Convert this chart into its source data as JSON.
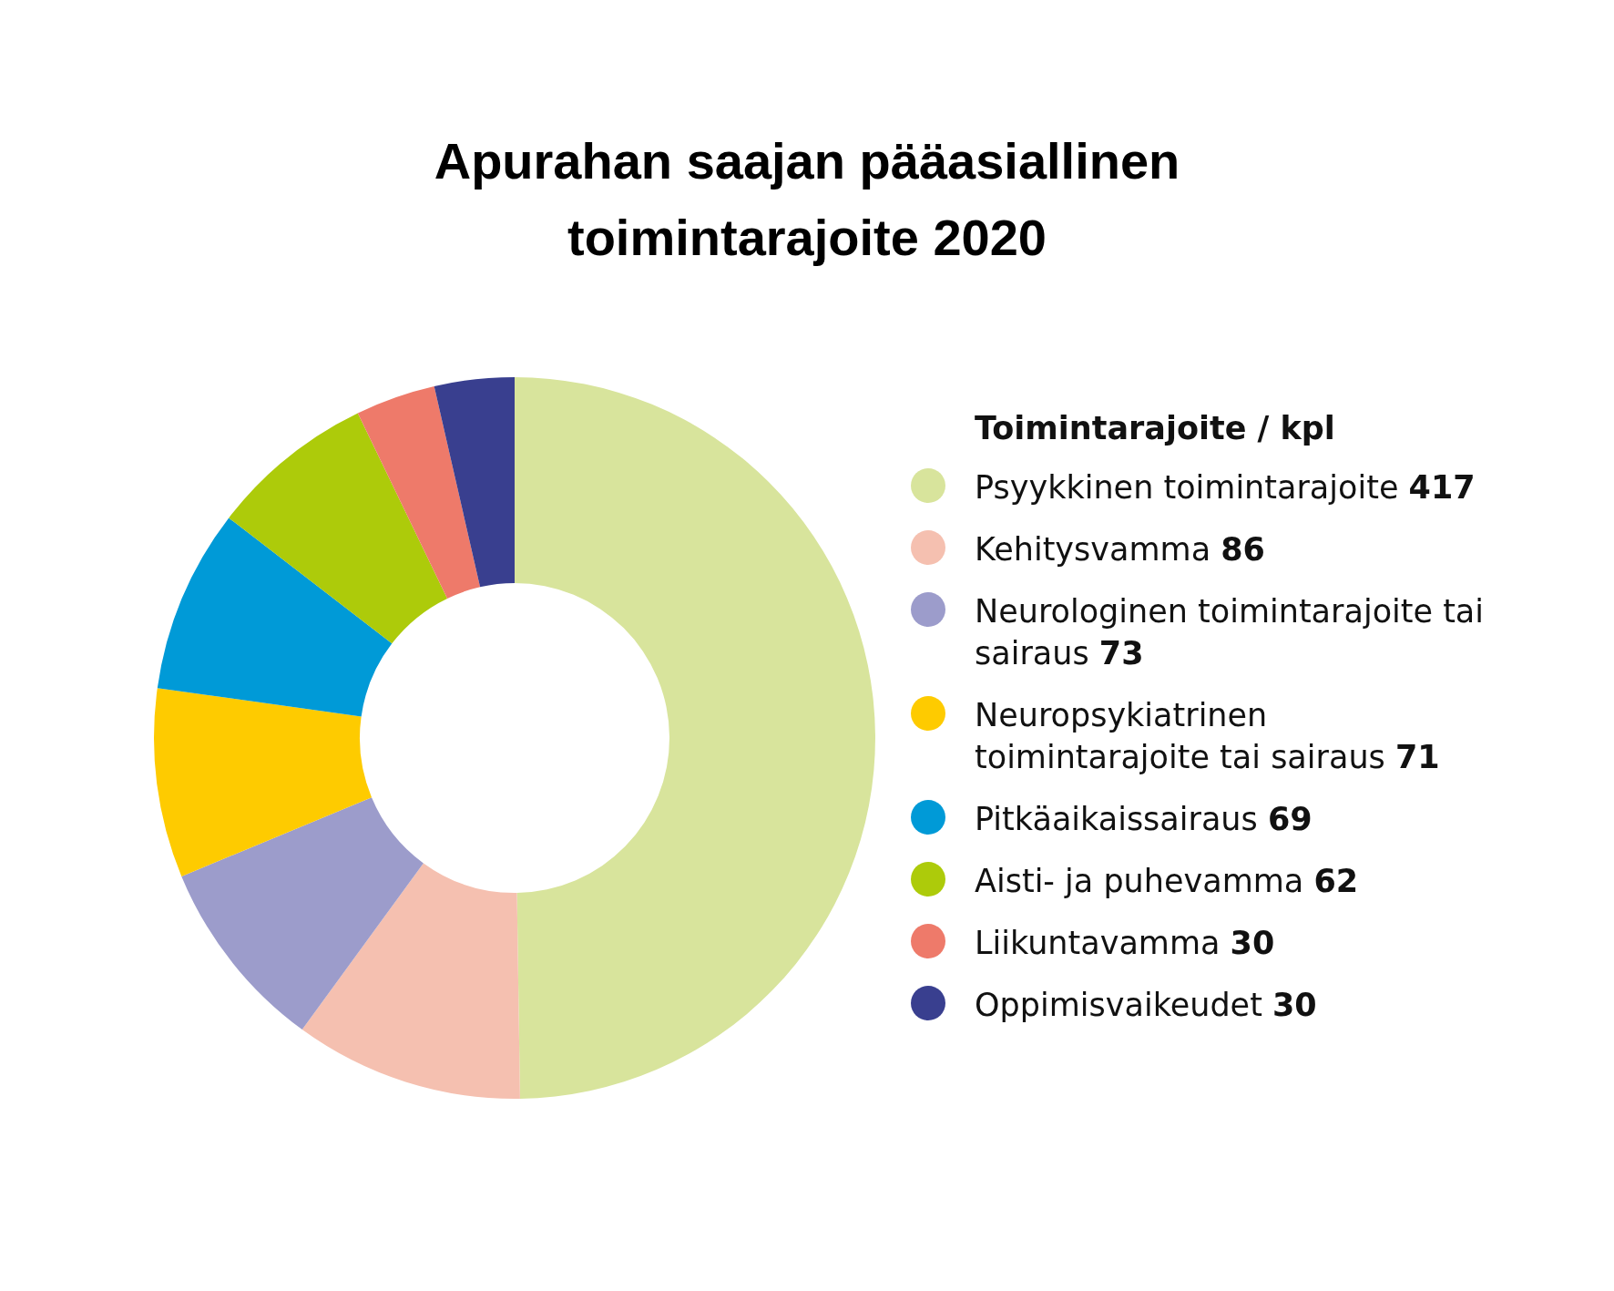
{
  "chart_data": {
    "type": "donut",
    "title": "Apurahan saajan pääasiallinen toimintarajoite 2020",
    "legend_title": "Toimintarajoite / kpl",
    "legend": "right",
    "data_labels": true,
    "categories": [
      "Psyykkinen toimintarajoite",
      "Kehitysvamma",
      "Neurologinen toimintarajoite tai sairaus",
      "Neuropsykiatrinen toimintarajoite tai sairaus",
      "Pitkäaikaissairaus",
      "Aisti- ja puhevamma",
      "Liikuntavamma",
      "Oppimisvaikeudet"
    ],
    "values": [
      417,
      86,
      73,
      71,
      69,
      62,
      30,
      30
    ],
    "colors": [
      "#d8e49c",
      "#f5c0b0",
      "#9c9ccb",
      "#fecb00",
      "#009ad7",
      "#adcb0a",
      "#ee7a6a",
      "#393f8f"
    ]
  }
}
